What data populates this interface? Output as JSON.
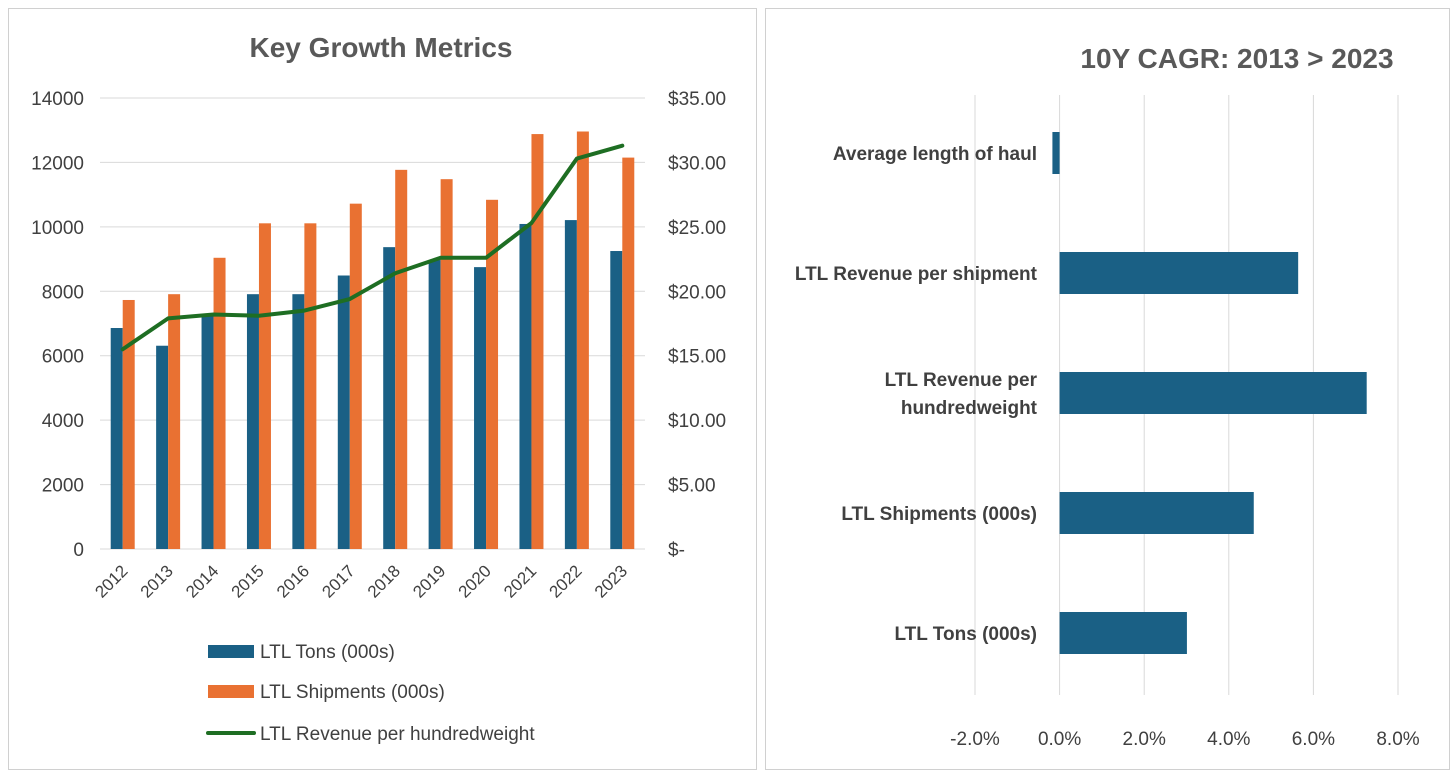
{
  "chart_data": [
    {
      "type": "bar+line",
      "title": "Key Growth Metrics",
      "categories": [
        "2012",
        "2013",
        "2014",
        "2015",
        "2016",
        "2017",
        "2018",
        "2019",
        "2020",
        "2021",
        "2022",
        "2023"
      ],
      "y_left": {
        "ylim": [
          0,
          14000
        ],
        "ticks": [
          "0",
          "2000",
          "4000",
          "6000",
          "8000",
          "10000",
          "12000",
          "14000"
        ],
        "tick_values": [
          0,
          2000,
          4000,
          6000,
          8000,
          10000,
          12000,
          14000
        ]
      },
      "y_right": {
        "ylim": [
          0,
          35
        ],
        "ticks": [
          "$-",
          "$5.00",
          "$10.00",
          "$15.00",
          "$20.00",
          "$25.00",
          "$30.00",
          "$35.00"
        ],
        "tick_values": [
          0,
          5,
          10,
          15,
          20,
          25,
          30,
          35
        ]
      },
      "grid": true,
      "legend_position": "bottom",
      "series": [
        {
          "name": "LTL Tons (000s)",
          "type": "bar",
          "axis": "left",
          "color": "#1a6085",
          "values": [
            6860,
            6310,
            7300,
            7910,
            7910,
            8490,
            9370,
            8970,
            8750,
            10090,
            10210,
            9250
          ]
        },
        {
          "name": "LTL Shipments (000s)",
          "type": "bar",
          "axis": "left",
          "color": "#e97132",
          "values": [
            7730,
            7910,
            9040,
            10110,
            10110,
            10720,
            11770,
            11480,
            10840,
            12880,
            12960,
            12150
          ]
        },
        {
          "name": "LTL Revenue per hundredweight",
          "type": "line",
          "axis": "right",
          "color": "#1e6e23",
          "values": [
            15.5,
            17.9,
            18.2,
            18.1,
            18.5,
            19.4,
            21.4,
            22.6,
            22.6,
            25.3,
            30.3,
            31.3
          ]
        }
      ]
    },
    {
      "type": "bar",
      "orientation": "horizontal",
      "title": "10Y CAGR: 2013 > 2023",
      "categories": [
        [
          "Average length of haul"
        ],
        [
          "LTL Revenue per shipment"
        ],
        [
          "LTL Revenue per",
          "hundredweight"
        ],
        [
          "LTL Shipments (000s)"
        ],
        [
          "LTL Tons (000s)"
        ]
      ],
      "values": [
        -0.0017,
        0.0564,
        0.0726,
        0.0459,
        0.0301
      ],
      "xlim": [
        -0.02,
        0.08
      ],
      "ticks": [
        "-2.0%",
        "0.0%",
        "2.0%",
        "4.0%",
        "6.0%",
        "8.0%"
      ],
      "tick_values": [
        -0.02,
        0,
        0.02,
        0.04,
        0.06,
        0.08
      ],
      "color": "#1a6085",
      "grid": true
    }
  ]
}
